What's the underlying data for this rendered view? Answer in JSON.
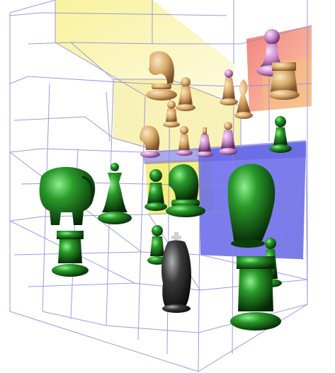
{
  "scene": {
    "type": "3d-chess-board",
    "grid_levels": 3,
    "grid_size": "3x3x3",
    "colors": {
      "background": "#ffffff",
      "grid_line": "#8a8ad8",
      "highlight_yellow": "#f5ec7a",
      "highlight_red": "#f07a7a",
      "highlight_blue": "#6a6ae8",
      "green_piece": "#1f7a1f",
      "green_piece_dark": "#0c3d0c",
      "green_piece_light": "#6fd66f",
      "tan_piece": "#d9b07a",
      "tan_piece_light": "#f3d8a8",
      "pink_piece": "#c98ac9",
      "pink_piece_light": "#f0c8f0",
      "black_piece": "#262626",
      "black_piece_light": "#8a8a8a"
    },
    "pieces": [
      {
        "name": "green-elephant",
        "kind": "elephant",
        "color": "green"
      },
      {
        "name": "green-queen",
        "kind": "queen",
        "color": "green"
      },
      {
        "name": "green-pawn-back",
        "kind": "pawn",
        "color": "green"
      },
      {
        "name": "green-knight-center",
        "kind": "knight",
        "color": "green"
      },
      {
        "name": "green-knight-large",
        "kind": "knight",
        "color": "green"
      },
      {
        "name": "green-rook-left",
        "kind": "rook",
        "color": "green"
      },
      {
        "name": "green-pawn-front",
        "kind": "pawn",
        "color": "green"
      },
      {
        "name": "green-pawn-right",
        "kind": "pawn",
        "color": "green"
      },
      {
        "name": "green-rook-right",
        "kind": "rook",
        "color": "green"
      },
      {
        "name": "black-king",
        "kind": "king",
        "color": "black"
      },
      {
        "name": "tan-knight-top",
        "kind": "knight",
        "color": "tan"
      },
      {
        "name": "tan-pawn-top",
        "kind": "pawn",
        "color": "tan"
      },
      {
        "name": "tan-bishop-top",
        "kind": "bishop",
        "color": "tan"
      },
      {
        "name": "tan-knight-mid",
        "kind": "knight",
        "color": "tan"
      },
      {
        "name": "tan-pawn-mid",
        "kind": "pawn",
        "color": "tan"
      },
      {
        "name": "pink-pawn-top",
        "kind": "pawn",
        "color": "pink"
      },
      {
        "name": "pink-pawn-mid",
        "kind": "pawn",
        "color": "pink"
      },
      {
        "name": "pink-bishop-mid",
        "kind": "bishop",
        "color": "pink"
      },
      {
        "name": "pink-king-mid",
        "kind": "king",
        "color": "pink"
      },
      {
        "name": "green-pawn-top-right",
        "kind": "pawn",
        "color": "green"
      }
    ]
  }
}
